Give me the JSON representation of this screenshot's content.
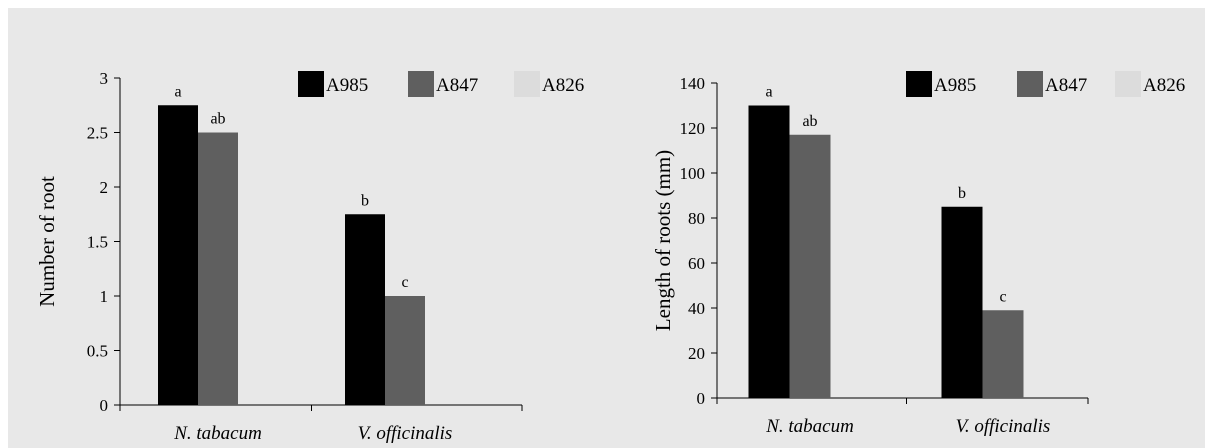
{
  "chart_data": [
    {
      "type": "bar",
      "categories": [
        "N. tabacum",
        "V. officinalis"
      ],
      "series": [
        {
          "name": "A985",
          "color": "#000000",
          "values": [
            2.75,
            1.75
          ],
          "labels": [
            "a",
            "b"
          ]
        },
        {
          "name": "A847",
          "color": "#5f5f5f",
          "values": [
            2.5,
            1.0
          ],
          "labels": [
            "ab",
            "c"
          ]
        },
        {
          "name": "A826",
          "color": "#dcdcdc",
          "values": [
            0,
            0
          ],
          "labels": [
            "",
            ""
          ]
        }
      ],
      "ylabel": "Number of root",
      "ylim": [
        0,
        3
      ],
      "yticks": [
        "0",
        "0.5",
        "1",
        "1.5",
        "2",
        "2.5",
        "3"
      ],
      "ytick_values": [
        0,
        0.5,
        1,
        1.5,
        2,
        2.5,
        3
      ],
      "legend": "top-right",
      "grid": false
    },
    {
      "type": "bar",
      "categories": [
        "N. tabacum",
        "V. officinalis"
      ],
      "series": [
        {
          "name": "A985",
          "color": "#000000",
          "values": [
            130,
            85
          ],
          "labels": [
            "a",
            "b"
          ]
        },
        {
          "name": "A847",
          "color": "#5f5f5f",
          "values": [
            117,
            39
          ],
          "labels": [
            "ab",
            "c"
          ]
        },
        {
          "name": "A826",
          "color": "#dcdcdc",
          "values": [
            0,
            0
          ],
          "labels": [
            "",
            ""
          ]
        }
      ],
      "ylabel": "Length of roots (mm)",
      "ylim": [
        0,
        140
      ],
      "yticks": [
        "0",
        "20",
        "40",
        "60",
        "80",
        "100",
        "120",
        "140"
      ],
      "ytick_values": [
        0,
        20,
        40,
        60,
        80,
        100,
        120,
        140
      ],
      "legend": "top-right",
      "grid": false
    }
  ]
}
